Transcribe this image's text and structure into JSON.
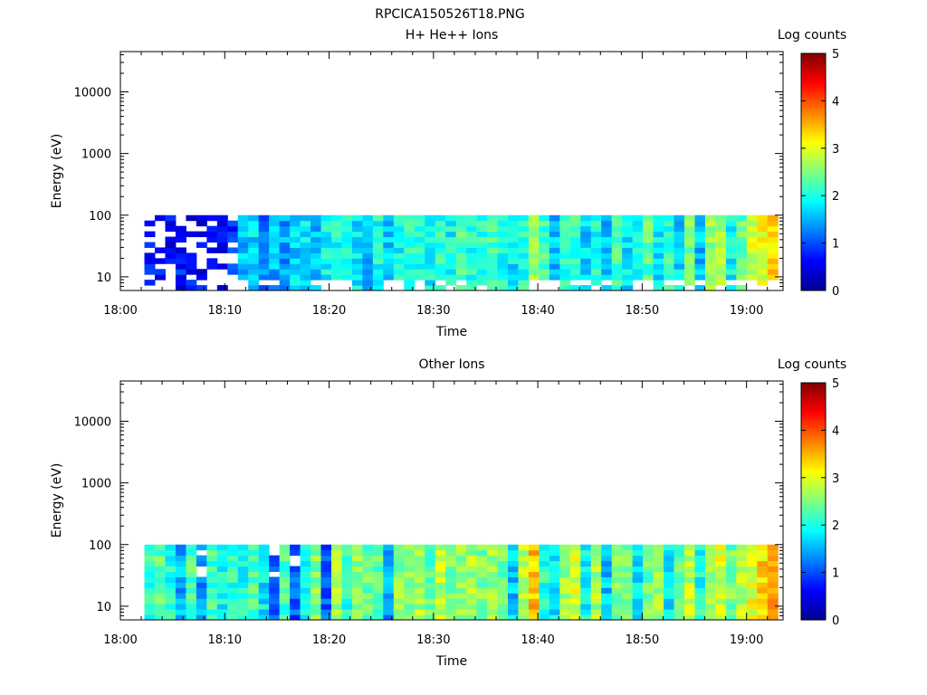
{
  "figure": {
    "title": "RPCICA150526T18.PNG"
  },
  "colorbar": {
    "label": "Log counts",
    "ticks": [
      "0",
      "1",
      "2",
      "3",
      "4",
      "5"
    ],
    "range": [
      0,
      5
    ]
  },
  "chart_data": [
    {
      "type": "heatmap",
      "title": "H+ He++ Ions",
      "xlabel": "Time",
      "ylabel": "Energy (eV)",
      "x_ticks": [
        "18:00",
        "18:10",
        "18:20",
        "18:30",
        "18:40",
        "18:50",
        "19:00"
      ],
      "xlim_minutes": [
        0,
        63.5
      ],
      "y_scale": "log",
      "y_ticks": [
        "10",
        "100",
        "1000",
        "10000"
      ],
      "ylim": [
        6,
        45000
      ],
      "data_time_range_minutes": [
        2.3,
        63
      ],
      "energy_range_ev": [
        6,
        100
      ],
      "legend": "colorbar right",
      "mean_log_counts_by_minute": [
        0.7,
        0.6,
        0.6,
        0.7,
        0.6,
        0.6,
        0.7,
        0.6,
        0.8,
        1.6,
        1.7,
        1.2,
        1.5,
        1.4,
        1.7,
        1.8,
        1.6,
        1.9,
        2.0,
        1.9,
        1.8,
        1.5,
        2.0,
        1.7,
        1.9,
        2.1,
        2.0,
        1.9,
        2.1,
        1.9,
        2.2,
        2.0,
        2.1,
        2.2,
        2.0,
        1.8,
        2.1,
        2.7,
        2.2,
        1.6,
        2.1,
        2.2,
        1.7,
        2.0,
        1.6,
        2.2,
        1.8,
        2.0,
        2.3,
        1.8,
        2.1,
        1.7,
        2.5,
        1.6,
        2.6,
        2.7,
        1.9,
        2.4,
        2.9,
        3.0,
        3.3
      ]
    },
    {
      "type": "heatmap",
      "title": "Other Ions",
      "xlabel": "Time",
      "ylabel": "Energy (eV)",
      "x_ticks": [
        "18:00",
        "18:10",
        "18:20",
        "18:30",
        "18:40",
        "18:50",
        "19:00"
      ],
      "xlim_minutes": [
        0,
        63.5
      ],
      "y_scale": "log",
      "y_ticks": [
        "10",
        "100",
        "1000",
        "10000"
      ],
      "ylim": [
        6,
        45000
      ],
      "data_time_range_minutes": [
        2.3,
        63
      ],
      "energy_range_ev": [
        6,
        100
      ],
      "legend": "colorbar right",
      "mean_log_counts_by_minute": [
        2.1,
        2.3,
        2.0,
        1.5,
        2.3,
        1.4,
        2.2,
        1.9,
        2.1,
        2.0,
        2.3,
        1.8,
        1.2,
        2.2,
        1.0,
        2.0,
        2.5,
        1.1,
        2.7,
        2.1,
        2.5,
        2.4,
        2.3,
        1.4,
        2.6,
        2.5,
        2.7,
        2.3,
        2.8,
        2.5,
        2.6,
        2.7,
        2.5,
        2.6,
        2.4,
        1.6,
        2.8,
        3.4,
        2.1,
        1.8,
        2.6,
        2.9,
        1.9,
        2.7,
        1.6,
        2.5,
        2.6,
        1.7,
        2.4,
        2.6,
        1.8,
        2.3,
        2.8,
        2.0,
        2.7,
        2.9,
        2.4,
        2.8,
        3.0,
        3.3,
        3.5
      ]
    }
  ]
}
